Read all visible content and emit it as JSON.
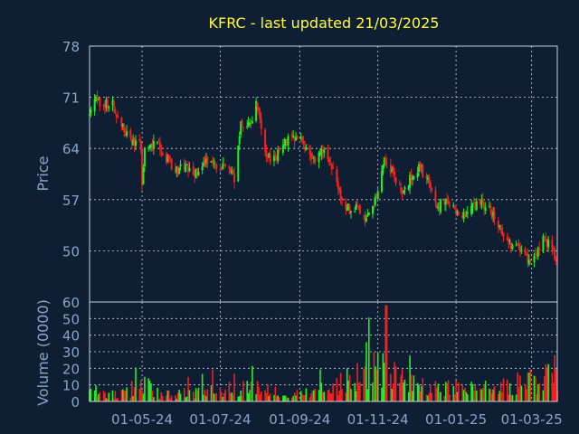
{
  "chart_data": {
    "type": "candlestick",
    "title": "KFRC - last updated 21/03/2025",
    "colors": {
      "background": "#0f1f33",
      "up": "#22ee22",
      "down": "#ee2222",
      "text": "#8aa4c8",
      "title": "#ffff33",
      "grid": "#c8d2e0"
    },
    "price_panel": {
      "ylabel": "Price",
      "ylim": [
        43,
        78
      ],
      "yticks": [
        78,
        71,
        64,
        57,
        50
      ],
      "grid": true
    },
    "volume_panel": {
      "ylabel": "Volume (0000)",
      "ylim": [
        0,
        60
      ],
      "yticks": [
        60,
        50,
        40,
        30,
        20,
        10,
        0
      ],
      "grid": true
    },
    "x_tick_labels": [
      "01-05-24",
      "01-07-24",
      "01-09-24",
      "01-11-24",
      "01-01-25",
      "01-03-25"
    ],
    "x_range": [
      "2024-03-21",
      "2025-03-21"
    ],
    "x_tick_dates": [
      "2024-05-01",
      "2024-07-01",
      "2024-09-01",
      "2024-11-01",
      "2025-01-01",
      "2025-03-01"
    ],
    "price_keypoints": [
      [
        "2024-03-21",
        68.5
      ],
      [
        "2024-03-26",
        70.5
      ],
      [
        "2024-04-02",
        70.3
      ],
      [
        "2024-04-08",
        70.0
      ],
      [
        "2024-04-12",
        68.5
      ],
      [
        "2024-04-17",
        66.5
      ],
      [
        "2024-04-23",
        64.8
      ],
      [
        "2024-04-30",
        64.5
      ],
      [
        "2024-05-01",
        58.5
      ],
      [
        "2024-05-03",
        63.8
      ],
      [
        "2024-05-13",
        65.0
      ],
      [
        "2024-05-20",
        62.5
      ],
      [
        "2024-05-28",
        61.0
      ],
      [
        "2024-06-05",
        61.5
      ],
      [
        "2024-06-12",
        60.5
      ],
      [
        "2024-06-20",
        62.0
      ],
      [
        "2024-06-28",
        61.5
      ],
      [
        "2024-07-08",
        61.8
      ],
      [
        "2024-07-12",
        60.0
      ],
      [
        "2024-07-17",
        67.5
      ],
      [
        "2024-07-25",
        67.0
      ],
      [
        "2024-07-30",
        70.5
      ],
      [
        "2024-08-05",
        63.0
      ],
      [
        "2024-08-12",
        62.5
      ],
      [
        "2024-08-19",
        64.5
      ],
      [
        "2024-08-27",
        65.5
      ],
      [
        "2024-09-03",
        65.0
      ],
      [
        "2024-09-12",
        62.5
      ],
      [
        "2024-09-20",
        63.5
      ],
      [
        "2024-09-27",
        61.0
      ],
      [
        "2024-10-03",
        57.5
      ],
      [
        "2024-10-10",
        55.5
      ],
      [
        "2024-10-17",
        56.0
      ],
      [
        "2024-10-23",
        54.0
      ],
      [
        "2024-10-28",
        56.5
      ],
      [
        "2024-11-01",
        57.5
      ],
      [
        "2024-11-06",
        62.0
      ],
      [
        "2024-11-13",
        60.5
      ],
      [
        "2024-11-20",
        58.0
      ],
      [
        "2024-11-27",
        60.0
      ],
      [
        "2024-12-03",
        61.5
      ],
      [
        "2024-12-10",
        59.5
      ],
      [
        "2024-12-17",
        56.0
      ],
      [
        "2024-12-24",
        56.8
      ],
      [
        "2024-12-31",
        55.5
      ],
      [
        "2025-01-08",
        55.0
      ],
      [
        "2025-01-15",
        56.0
      ],
      [
        "2025-01-22",
        56.5
      ],
      [
        "2025-01-29",
        55.0
      ],
      [
        "2025-02-05",
        53.0
      ],
      [
        "2025-02-12",
        51.0
      ],
      [
        "2025-02-19",
        50.0
      ],
      [
        "2025-02-26",
        49.0
      ],
      [
        "2025-03-05",
        49.5
      ],
      [
        "2025-03-10",
        51.5
      ],
      [
        "2025-03-17",
        50.5
      ],
      [
        "2025-03-21",
        48.5
      ]
    ],
    "volume_keypoints": [
      [
        "2024-03-21",
        6
      ],
      [
        "2024-04-15",
        5
      ],
      [
        "2024-05-01",
        12
      ],
      [
        "2024-05-15",
        5
      ],
      [
        "2024-06-15",
        6
      ],
      [
        "2024-07-15",
        9
      ],
      [
        "2024-08-01",
        8
      ],
      [
        "2024-08-20",
        6
      ],
      [
        "2024-09-10",
        6
      ],
      [
        "2024-09-25",
        10
      ],
      [
        "2024-10-10",
        14
      ],
      [
        "2024-10-31",
        22
      ],
      [
        "2024-11-06",
        30
      ],
      [
        "2024-11-15",
        15
      ],
      [
        "2024-12-01",
        10
      ],
      [
        "2024-12-20",
        9
      ],
      [
        "2025-01-10",
        8
      ],
      [
        "2025-01-25",
        9
      ],
      [
        "2025-02-10",
        10
      ],
      [
        "2025-02-20",
        14
      ],
      [
        "2025-03-05",
        12
      ],
      [
        "2025-03-21",
        20
      ]
    ]
  }
}
